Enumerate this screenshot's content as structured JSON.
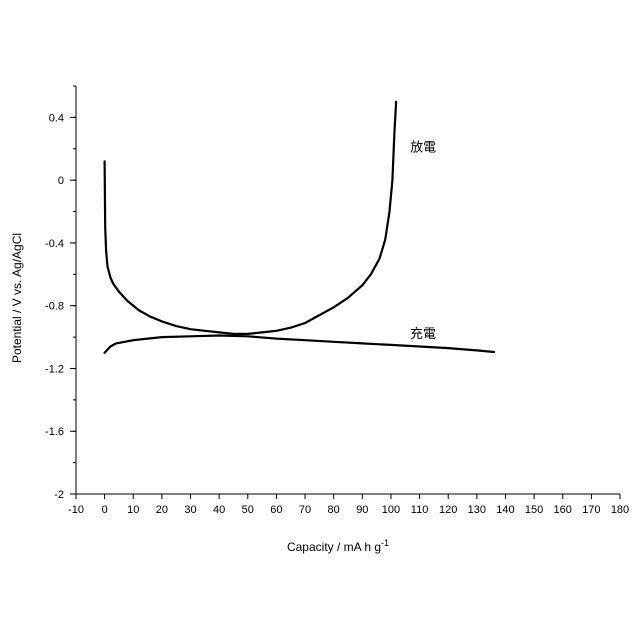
{
  "chart_data": {
    "type": "line",
    "title": "",
    "xlabel": "Capacity / mA h g",
    "xlabel_superscript": "-1",
    "ylabel": "Potential / V vs. Ag/AgCl",
    "xlim": [
      -10,
      180
    ],
    "ylim": [
      -2,
      0.6
    ],
    "x_ticks": [
      -10,
      0,
      10,
      20,
      30,
      40,
      50,
      60,
      70,
      80,
      90,
      100,
      110,
      120,
      130,
      140,
      150,
      160,
      170,
      180
    ],
    "y_ticks": [
      -2,
      -1.6,
      -1.2,
      -0.8,
      -0.4,
      0,
      0.4
    ],
    "y_tick_labels": [
      "-2",
      "-1.6",
      "-1.2",
      "-0.8",
      "-0.4",
      "0",
      "0.4"
    ],
    "grid": false,
    "series": [
      {
        "name": "放電",
        "x": [
          0,
          0.2,
          0.5,
          1,
          2,
          3,
          5,
          8,
          12,
          16,
          20,
          25,
          30,
          35,
          40,
          45,
          50,
          55,
          60,
          65,
          70,
          75,
          80,
          85,
          90,
          93,
          96,
          98,
          99.5,
          100.5,
          101.2,
          101.8
        ],
        "values": [
          0.12,
          -0.3,
          -0.45,
          -0.55,
          -0.62,
          -0.66,
          -0.71,
          -0.77,
          -0.83,
          -0.87,
          -0.9,
          -0.93,
          -0.95,
          -0.96,
          -0.97,
          -0.98,
          -0.98,
          -0.97,
          -0.96,
          -0.94,
          -0.91,
          -0.86,
          -0.81,
          -0.75,
          -0.67,
          -0.6,
          -0.5,
          -0.38,
          -0.2,
          0.0,
          0.3,
          0.5
        ]
      },
      {
        "name": "充電",
        "x": [
          0,
          1,
          2,
          4,
          7,
          10,
          15,
          20,
          30,
          40,
          50,
          60,
          70,
          80,
          90,
          100,
          110,
          120,
          130,
          136
        ],
        "values": [
          -1.1,
          -1.08,
          -1.06,
          -1.04,
          -1.03,
          -1.02,
          -1.01,
          -1.0,
          -0.995,
          -0.99,
          -0.995,
          -1.01,
          -1.02,
          -1.03,
          -1.04,
          -1.05,
          -1.06,
          -1.07,
          -1.085,
          -1.095
        ]
      }
    ]
  }
}
